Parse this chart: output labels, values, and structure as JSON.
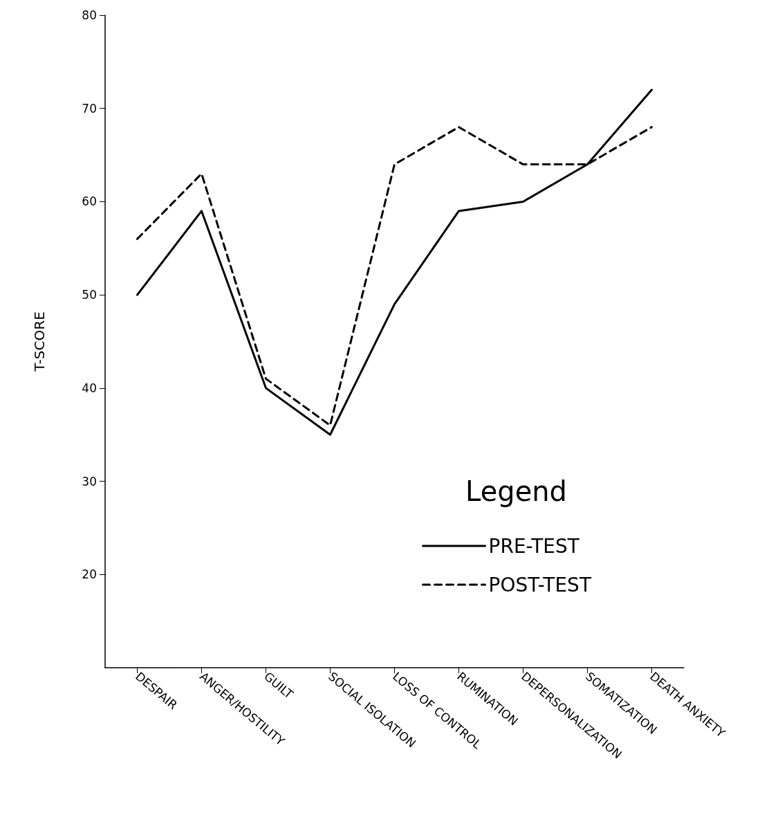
{
  "chart_data": {
    "type": "line",
    "ylabel": "T-SCORE",
    "legend_title": "Legend",
    "categories": [
      "DESPAIR",
      "ANGER/HOSTILITY",
      "GUILT",
      "SOCIAL ISOLATION",
      "LOSS OF CONTROL",
      "RUMINATION",
      "DEPERSONALIZATION",
      "SOMATIZATION",
      "DEATH ANXIETY"
    ],
    "series": [
      {
        "name": "PRE-TEST",
        "color": "#000000",
        "line_style": "solid",
        "values": [
          50,
          59,
          40,
          35,
          49,
          59,
          60,
          64,
          72
        ]
      },
      {
        "name": "POST-TEST",
        "color": "#000000",
        "line_style": "dashed",
        "values": [
          56,
          63,
          41,
          36,
          64,
          68,
          64,
          64,
          68
        ]
      }
    ],
    "ylim": [
      10,
      80
    ],
    "yticks": [
      20,
      30,
      40,
      50,
      60,
      70,
      80
    ],
    "grid": false,
    "legend": "bottom right",
    "marker": "none"
  }
}
